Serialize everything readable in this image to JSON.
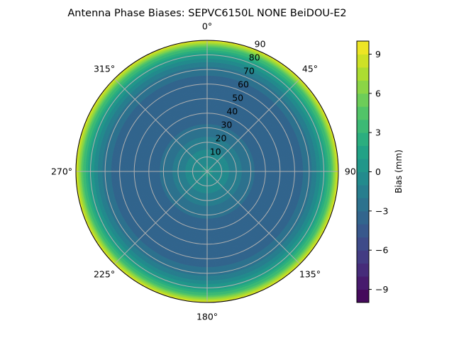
{
  "chart_data": {
    "type": "polar-contour",
    "title": "Antenna Phase Biases: SEPVC6150L      NONE BeiDOU-E2",
    "angular_ticks": [
      "0°",
      "45°",
      "90°",
      "135°",
      "180°",
      "225°",
      "270°",
      "315°"
    ],
    "angular_tick_values": [
      0,
      45,
      90,
      135,
      180,
      225,
      270,
      315
    ],
    "radial_ticks": [
      "10",
      "20",
      "30",
      "40",
      "50",
      "60",
      "70",
      "80",
      "90"
    ],
    "radial_tick_values": [
      10,
      20,
      30,
      40,
      50,
      60,
      70,
      80,
      90
    ],
    "rlim": [
      0,
      90
    ],
    "grid": true,
    "colormap": "viridis",
    "colorbar": {
      "label": "Bias (mm)",
      "range": [
        -10,
        10
      ],
      "levels_step": 1,
      "ticks": [
        "−9",
        "−6",
        "−3",
        "0",
        "3",
        "6",
        "9"
      ],
      "tick_values": [
        -9,
        -6,
        -3,
        0,
        3,
        6,
        9
      ]
    },
    "radial_profile": {
      "zenith_deg": [
        0,
        10,
        20,
        30,
        40,
        50,
        60,
        70,
        75,
        80,
        85,
        90
      ],
      "bias_mm": [
        0.3,
        -0.5,
        -1.5,
        -2.8,
        -3.6,
        -4.0,
        -3.7,
        -2.5,
        -1.0,
        1.0,
        4.0,
        9.5
      ]
    }
  }
}
